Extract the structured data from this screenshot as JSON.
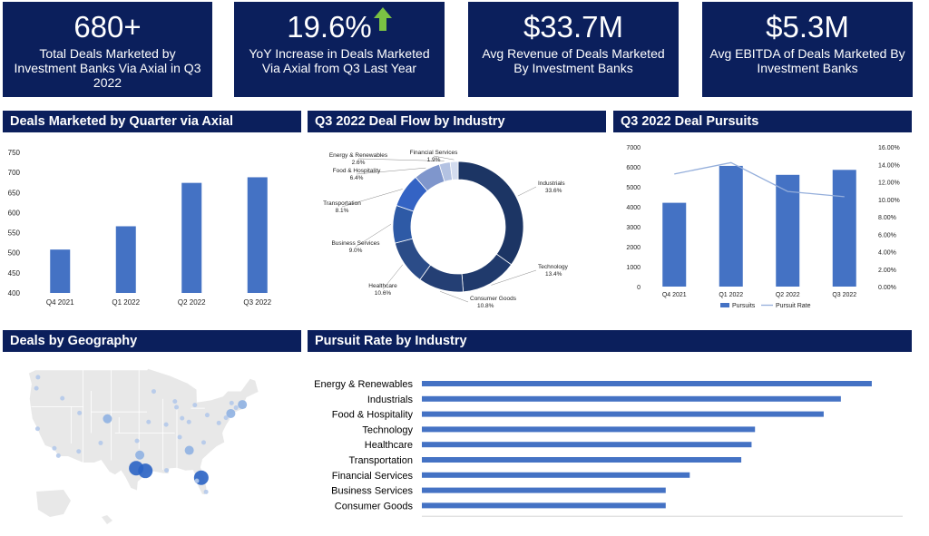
{
  "kpis": [
    {
      "value": "680+",
      "desc": "Total Deals Marketed by Investment Banks Via Axial in Q3 2022",
      "arrow": false
    },
    {
      "value": "19.6%",
      "desc": "YoY Increase in Deals Marketed Via Axial from Q3 Last Year",
      "arrow": true
    },
    {
      "value": "$33.7M",
      "desc": "Avg Revenue of Deals Marketed By Investment Banks",
      "arrow": false
    },
    {
      "value": "$5.3M",
      "desc": "Avg EBITDA of Deals Marketed By Investment Banks",
      "arrow": false
    }
  ],
  "colors": {
    "navy": "#0b1f5c",
    "bar": "#4472c4",
    "arrow": "#7ac143"
  },
  "panels": {
    "deals_by_quarter": "Deals Marketed by Quarter via Axial",
    "deal_flow": "Q3 2022 Deal Flow by Industry",
    "deal_pursuits": "Q3 2022 Deal Pursuits",
    "geography": "Deals by Geography",
    "pursuit_rate": "Pursuit Rate by Industry"
  },
  "chart_data": [
    {
      "id": "deals_by_quarter",
      "type": "bar",
      "categories": [
        "Q4  2021",
        "Q1 2022",
        "Q2 2022",
        "Q3 2022"
      ],
      "values": [
        508,
        566,
        674,
        688
      ],
      "ylim": [
        400,
        750
      ],
      "yticks": [
        "400",
        "450",
        "500",
        "550",
        "600",
        "650",
        "700",
        "750"
      ]
    },
    {
      "id": "deal_flow",
      "type": "pie",
      "donut": true,
      "labels": [
        "Industrials",
        "Technology",
        "Consumer Goods",
        "Healthcare",
        "Business Services",
        "Transportation",
        "Food & Hospitality",
        "Energy & Renewables",
        "Financial Services"
      ],
      "values": [
        33.6,
        13.4,
        10.8,
        10.6,
        9.0,
        8.1,
        6.4,
        2.6,
        1.9
      ],
      "value_labels": [
        "33.6%",
        "13.4%",
        "10.8%",
        "10.6%",
        "9.0%",
        "8.1%",
        "6.4%",
        "2.6%",
        "1.9%"
      ],
      "colors": [
        "#1c3564",
        "#203a6c",
        "#243f74",
        "#2b4c88",
        "#2e5aa6",
        "#3463c4",
        "#7f96cc",
        "#b3c2e2",
        "#d3dcef"
      ]
    },
    {
      "id": "deal_pursuits",
      "type": "bar+line",
      "categories": [
        "Q4  2021",
        "Q1 2022",
        "Q2 2022",
        "Q3 2022"
      ],
      "series": [
        {
          "name": "Pursuits",
          "type": "bar",
          "values": [
            4200,
            6050,
            5600,
            5850
          ]
        },
        {
          "name": "Pursuit Rate",
          "type": "line",
          "axis": "right",
          "values": [
            12.9,
            14.2,
            10.9,
            10.3
          ]
        }
      ],
      "ylim": [
        0,
        7000
      ],
      "yticks": [
        "0",
        "1000",
        "2000",
        "3000",
        "4000",
        "5000",
        "6000",
        "7000"
      ],
      "y2lim": [
        0,
        16
      ],
      "y2ticks": [
        "0.00%",
        "2.00%",
        "4.00%",
        "6.00%",
        "8.00%",
        "10.00%",
        "12.00%",
        "14.00%",
        "16.00%"
      ],
      "legend": "bottom"
    },
    {
      "id": "pursuit_rate",
      "type": "bar",
      "orientation": "horizontal",
      "categories": [
        "Energy & Renewables",
        "Industrials",
        "Food & Hospitality",
        "Technology",
        "Healthcare",
        "Transportation",
        "Financial Services",
        "Business Services",
        "Consumer Goods"
      ],
      "values": [
        13.1,
        12.2,
        11.7,
        9.7,
        9.6,
        9.3,
        7.8,
        7.1,
        7.1
      ],
      "xlim": [
        0,
        14
      ],
      "xticks": [
        "0.00%",
        "2.00%",
        "4.00%",
        "6.00%",
        "8.00%",
        "10.00%",
        "12.00%",
        "14.00%"
      ]
    }
  ],
  "geo_points": [
    {
      "lon": -97.7,
      "lat": 30.3,
      "size": "large"
    },
    {
      "lon": -95.4,
      "lat": 29.8,
      "size": "large"
    },
    {
      "lon": -81.4,
      "lat": 28.5,
      "size": "large"
    },
    {
      "lon": -96.8,
      "lat": 32.8,
      "size": "medium"
    },
    {
      "lon": -104.9,
      "lat": 39.7,
      "size": "medium"
    },
    {
      "lon": -84.4,
      "lat": 33.7,
      "size": "medium"
    },
    {
      "lon": -74.0,
      "lat": 40.7,
      "size": "medium"
    },
    {
      "lon": -71.1,
      "lat": 42.4,
      "size": "medium"
    },
    {
      "lon": -75.2,
      "lat": 39.9,
      "size": "small"
    },
    {
      "lon": -87.6,
      "lat": 41.9,
      "size": "small"
    },
    {
      "lon": -122.4,
      "lat": 37.8,
      "size": "small"
    },
    {
      "lon": -118.2,
      "lat": 34.1,
      "size": "small"
    },
    {
      "lon": -112.1,
      "lat": 33.5,
      "size": "small"
    },
    {
      "lon": -122.3,
      "lat": 47.6,
      "size": "small"
    },
    {
      "lon": -93.3,
      "lat": 44.9,
      "size": "small"
    },
    {
      "lon": -90.2,
      "lat": 38.6,
      "size": "small"
    },
    {
      "lon": -80.8,
      "lat": 35.2,
      "size": "small"
    },
    {
      "lon": -86.8,
      "lat": 36.2,
      "size": "small"
    },
    {
      "lon": -77.0,
      "lat": 38.9,
      "size": "small"
    },
    {
      "lon": -83.0,
      "lat": 42.3,
      "size": "small"
    },
    {
      "lon": -84.5,
      "lat": 39.1,
      "size": "small"
    },
    {
      "lon": -79.9,
      "lat": 40.4,
      "size": "small"
    },
    {
      "lon": -111.9,
      "lat": 40.8,
      "size": "small"
    },
    {
      "lon": -94.6,
      "lat": 39.1,
      "size": "small"
    },
    {
      "lon": -80.2,
      "lat": 25.8,
      "size": "small"
    },
    {
      "lon": -82.5,
      "lat": 27.9,
      "size": "small"
    },
    {
      "lon": -90.1,
      "lat": 29.9,
      "size": "small"
    },
    {
      "lon": -106.6,
      "lat": 35.1,
      "size": "small"
    },
    {
      "lon": -117.2,
      "lat": 32.7,
      "size": "small"
    },
    {
      "lon": -122.7,
      "lat": 45.5,
      "size": "small"
    },
    {
      "lon": -73.8,
      "lat": 42.7,
      "size": "small"
    },
    {
      "lon": -88.0,
      "lat": 43.0,
      "size": "small"
    },
    {
      "lon": -86.2,
      "lat": 39.8,
      "size": "small"
    },
    {
      "lon": -97.5,
      "lat": 35.5,
      "size": "small"
    },
    {
      "lon": -72.7,
      "lat": 41.8,
      "size": "small"
    },
    {
      "lon": -116.2,
      "lat": 43.6,
      "size": "small"
    }
  ]
}
